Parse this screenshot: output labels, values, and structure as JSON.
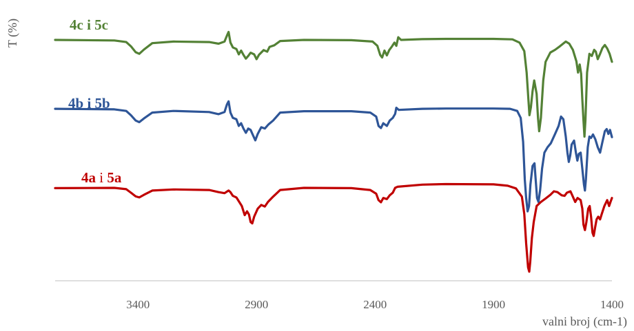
{
  "chart_data": {
    "type": "line",
    "title": "",
    "xlabel": "valni broj (cm-1)",
    "ylabel": "T (%)",
    "x_reversed": true,
    "xlim": [
      3750,
      1400
    ],
    "ylim": [
      0,
      100
    ],
    "x_ticks": [
      3400,
      2900,
      2400,
      1900,
      1400
    ],
    "x_tick_labels": [
      "3400",
      "2900",
      "2400",
      "1900",
      "1400"
    ],
    "grid": false,
    "series": [
      {
        "label_parts": [
          {
            "text": "4c",
            "bold": true
          },
          {
            "text": " i ",
            "bold": true
          },
          {
            "text": "5c",
            "bold": true
          }
        ],
        "color": "#538135",
        "points": [
          [
            3750,
            90.2
          ],
          [
            3500,
            90.0
          ],
          [
            3450,
            89.4
          ],
          [
            3430,
            87.8
          ],
          [
            3410,
            85.6
          ],
          [
            3395,
            85.0
          ],
          [
            3375,
            86.6
          ],
          [
            3340,
            89.0
          ],
          [
            3250,
            89.6
          ],
          [
            3100,
            89.4
          ],
          [
            3060,
            88.8
          ],
          [
            3035,
            89.6
          ],
          [
            3025,
            91.8
          ],
          [
            3018,
            93.2
          ],
          [
            3010,
            89.2
          ],
          [
            3000,
            87.4
          ],
          [
            2985,
            86.8
          ],
          [
            2975,
            84.8
          ],
          [
            2965,
            86.2
          ],
          [
            2955,
            84.6
          ],
          [
            2945,
            83.2
          ],
          [
            2935,
            84.2
          ],
          [
            2925,
            85.4
          ],
          [
            2910,
            84.8
          ],
          [
            2900,
            83.0
          ],
          [
            2890,
            84.6
          ],
          [
            2870,
            86.4
          ],
          [
            2855,
            85.8
          ],
          [
            2845,
            87.6
          ],
          [
            2825,
            88.2
          ],
          [
            2800,
            89.8
          ],
          [
            2700,
            90.2
          ],
          [
            2500,
            90.1
          ],
          [
            2410,
            89.6
          ],
          [
            2390,
            88.0
          ],
          [
            2378,
            84.6
          ],
          [
            2370,
            83.6
          ],
          [
            2360,
            86.2
          ],
          [
            2350,
            84.4
          ],
          [
            2340,
            86.4
          ],
          [
            2328,
            87.8
          ],
          [
            2318,
            89.2
          ],
          [
            2310,
            88.0
          ],
          [
            2302,
            91.2
          ],
          [
            2290,
            90.2
          ],
          [
            2200,
            90.5
          ],
          [
            2100,
            90.6
          ],
          [
            1900,
            90.6
          ],
          [
            1820,
            90.4
          ],
          [
            1790,
            89.2
          ],
          [
            1770,
            86.0
          ],
          [
            1760,
            78.0
          ],
          [
            1752,
            67.0
          ],
          [
            1748,
            62.0
          ],
          [
            1742,
            65.0
          ],
          [
            1735,
            71.0
          ],
          [
            1728,
            75.0
          ],
          [
            1718,
            70.0
          ],
          [
            1712,
            61.0
          ],
          [
            1707,
            56.0
          ],
          [
            1700,
            61.0
          ],
          [
            1690,
            75.0
          ],
          [
            1680,
            82.0
          ],
          [
            1660,
            85.5
          ],
          [
            1640,
            86.5
          ],
          [
            1620,
            87.8
          ],
          [
            1595,
            89.6
          ],
          [
            1580,
            88.8
          ],
          [
            1565,
            86.5
          ],
          [
            1550,
            82.2
          ],
          [
            1543,
            78.0
          ],
          [
            1536,
            81.0
          ],
          [
            1530,
            77.5
          ],
          [
            1525,
            68.0
          ],
          [
            1520,
            60.0
          ],
          [
            1516,
            54.0
          ],
          [
            1512,
            60.0
          ],
          [
            1505,
            78.0
          ],
          [
            1495,
            85.0
          ],
          [
            1485,
            84.2
          ],
          [
            1475,
            86.5
          ],
          [
            1468,
            85.8
          ],
          [
            1460,
            83.0
          ],
          [
            1450,
            85.0
          ],
          [
            1440,
            87.2
          ],
          [
            1430,
            88.3
          ],
          [
            1420,
            87.0
          ],
          [
            1410,
            85.0
          ],
          [
            1400,
            82.0
          ]
        ]
      },
      {
        "label_parts": [
          {
            "text": "4b",
            "bold": true
          },
          {
            "text": " i ",
            "bold": true
          },
          {
            "text": "5b",
            "bold": true
          }
        ],
        "color": "#2E5597",
        "points": [
          [
            3750,
            64.4
          ],
          [
            3500,
            64.2
          ],
          [
            3450,
            63.6
          ],
          [
            3430,
            62.0
          ],
          [
            3410,
            60.0
          ],
          [
            3395,
            59.4
          ],
          [
            3375,
            60.8
          ],
          [
            3340,
            63.0
          ],
          [
            3250,
            63.6
          ],
          [
            3100,
            63.2
          ],
          [
            3060,
            62.4
          ],
          [
            3035,
            63.2
          ],
          [
            3025,
            66.0
          ],
          [
            3018,
            67.2
          ],
          [
            3010,
            63.0
          ],
          [
            3000,
            61.0
          ],
          [
            2985,
            60.5
          ],
          [
            2975,
            58.0
          ],
          [
            2965,
            59.0
          ],
          [
            2955,
            57.0
          ],
          [
            2945,
            55.4
          ],
          [
            2935,
            57.0
          ],
          [
            2925,
            56.5
          ],
          [
            2915,
            54.5
          ],
          [
            2905,
            52.6
          ],
          [
            2895,
            55.0
          ],
          [
            2880,
            57.5
          ],
          [
            2865,
            57.0
          ],
          [
            2850,
            58.5
          ],
          [
            2830,
            60.0
          ],
          [
            2800,
            63.0
          ],
          [
            2700,
            63.5
          ],
          [
            2500,
            63.5
          ],
          [
            2420,
            63.0
          ],
          [
            2395,
            61.5
          ],
          [
            2385,
            58.0
          ],
          [
            2375,
            57.2
          ],
          [
            2365,
            59.0
          ],
          [
            2350,
            58.0
          ],
          [
            2338,
            60.0
          ],
          [
            2325,
            61.0
          ],
          [
            2315,
            62.5
          ],
          [
            2310,
            64.8
          ],
          [
            2300,
            64.0
          ],
          [
            2200,
            64.4
          ],
          [
            2100,
            64.5
          ],
          [
            1900,
            64.5
          ],
          [
            1830,
            64.4
          ],
          [
            1800,
            63.6
          ],
          [
            1785,
            61.0
          ],
          [
            1775,
            52.0
          ],
          [
            1768,
            38.0
          ],
          [
            1762,
            31.0
          ],
          [
            1756,
            26.0
          ],
          [
            1750,
            28.0
          ],
          [
            1744,
            36.0
          ],
          [
            1735,
            43.0
          ],
          [
            1727,
            44.0
          ],
          [
            1722,
            38.0
          ],
          [
            1716,
            31.0
          ],
          [
            1710,
            29.5
          ],
          [
            1703,
            34.0
          ],
          [
            1695,
            42.0
          ],
          [
            1685,
            48.0
          ],
          [
            1672,
            50.0
          ],
          [
            1658,
            51.5
          ],
          [
            1640,
            55.0
          ],
          [
            1625,
            58.0
          ],
          [
            1615,
            61.5
          ],
          [
            1605,
            60.5
          ],
          [
            1595,
            54.0
          ],
          [
            1588,
            48.0
          ],
          [
            1582,
            44.5
          ],
          [
            1576,
            47.0
          ],
          [
            1570,
            51.0
          ],
          [
            1560,
            52.5
          ],
          [
            1552,
            48.0
          ],
          [
            1546,
            45.0
          ],
          [
            1540,
            47.5
          ],
          [
            1532,
            48.0
          ],
          [
            1525,
            42.0
          ],
          [
            1518,
            36.0
          ],
          [
            1514,
            33.8
          ],
          [
            1510,
            38.0
          ],
          [
            1502,
            50.0
          ],
          [
            1495,
            54.0
          ],
          [
            1488,
            53.5
          ],
          [
            1480,
            54.8
          ],
          [
            1470,
            53.0
          ],
          [
            1460,
            50.0
          ],
          [
            1450,
            48.0
          ],
          [
            1440,
            52.0
          ],
          [
            1430,
            56.0
          ],
          [
            1422,
            56.8
          ],
          [
            1415,
            55.0
          ],
          [
            1408,
            56.5
          ],
          [
            1400,
            53.8
          ]
        ]
      },
      {
        "label_parts": [
          {
            "text": "4a",
            "bold": true
          },
          {
            "text": " i ",
            "bold": false
          },
          {
            "text": "5a",
            "bold": true
          }
        ],
        "color": "#C00000",
        "points": [
          [
            3750,
            34.7
          ],
          [
            3500,
            34.8
          ],
          [
            3450,
            34.3
          ],
          [
            3430,
            33.0
          ],
          [
            3410,
            31.6
          ],
          [
            3395,
            31.2
          ],
          [
            3375,
            32.2
          ],
          [
            3340,
            33.8
          ],
          [
            3250,
            34.2
          ],
          [
            3100,
            34.0
          ],
          [
            3060,
            33.2
          ],
          [
            3035,
            32.8
          ],
          [
            3018,
            33.8
          ],
          [
            3010,
            33.2
          ],
          [
            3000,
            31.8
          ],
          [
            2985,
            31.2
          ],
          [
            2975,
            29.8
          ],
          [
            2962,
            28.0
          ],
          [
            2950,
            24.6
          ],
          [
            2940,
            26.0
          ],
          [
            2932,
            24.8
          ],
          [
            2925,
            22.0
          ],
          [
            2918,
            21.5
          ],
          [
            2910,
            24.0
          ],
          [
            2895,
            27.0
          ],
          [
            2880,
            28.4
          ],
          [
            2865,
            27.8
          ],
          [
            2852,
            29.5
          ],
          [
            2830,
            31.5
          ],
          [
            2800,
            34.0
          ],
          [
            2700,
            34.8
          ],
          [
            2500,
            34.7
          ],
          [
            2420,
            34.0
          ],
          [
            2395,
            32.6
          ],
          [
            2385,
            30.2
          ],
          [
            2375,
            29.4
          ],
          [
            2365,
            31.0
          ],
          [
            2350,
            30.6
          ],
          [
            2338,
            32.0
          ],
          [
            2325,
            33.0
          ],
          [
            2315,
            34.8
          ],
          [
            2305,
            35.2
          ],
          [
            2200,
            36.0
          ],
          [
            2100,
            36.2
          ],
          [
            1900,
            36.1
          ],
          [
            1840,
            35.6
          ],
          [
            1805,
            34.6
          ],
          [
            1780,
            31.5
          ],
          [
            1770,
            25.0
          ],
          [
            1762,
            14.0
          ],
          [
            1754,
            5.0
          ],
          [
            1749,
            3.4
          ],
          [
            1745,
            7.0
          ],
          [
            1738,
            16.0
          ],
          [
            1730,
            22.0
          ],
          [
            1718,
            28.0
          ],
          [
            1700,
            29.5
          ],
          [
            1680,
            30.8
          ],
          [
            1660,
            32.2
          ],
          [
            1645,
            33.5
          ],
          [
            1630,
            33.2
          ],
          [
            1612,
            32.0
          ],
          [
            1600,
            31.8
          ],
          [
            1590,
            33.0
          ],
          [
            1575,
            33.5
          ],
          [
            1565,
            31.5
          ],
          [
            1555,
            29.5
          ],
          [
            1545,
            31.0
          ],
          [
            1532,
            30.2
          ],
          [
            1525,
            27.0
          ],
          [
            1520,
            21.0
          ],
          [
            1514,
            19.0
          ],
          [
            1508,
            22.0
          ],
          [
            1500,
            27.0
          ],
          [
            1494,
            28.0
          ],
          [
            1488,
            24.0
          ],
          [
            1482,
            18.0
          ],
          [
            1477,
            16.8
          ],
          [
            1471,
            20.0
          ],
          [
            1465,
            23.0
          ],
          [
            1458,
            24.0
          ],
          [
            1450,
            23.0
          ],
          [
            1443,
            25.0
          ],
          [
            1432,
            28.0
          ],
          [
            1420,
            30.2
          ],
          [
            1412,
            28.0
          ],
          [
            1406,
            29.5
          ],
          [
            1400,
            31.0
          ]
        ]
      }
    ]
  }
}
